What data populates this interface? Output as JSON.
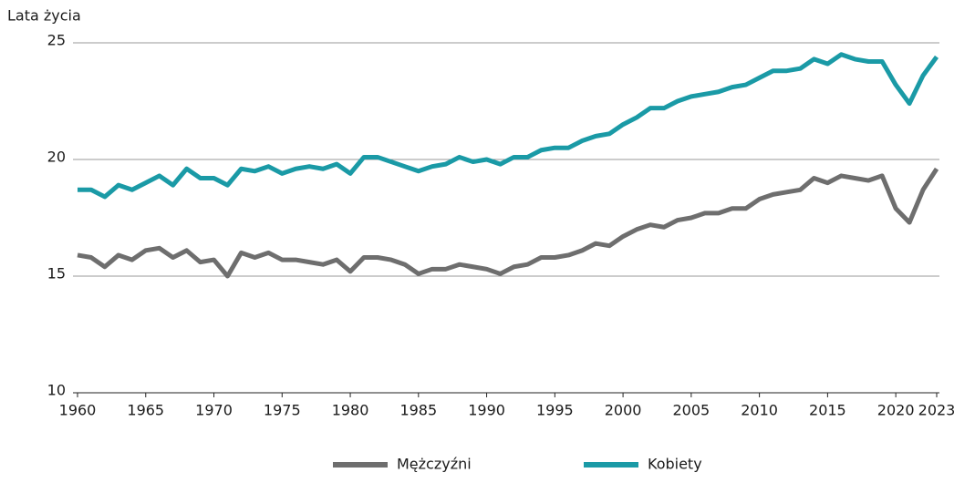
{
  "chart_data": {
    "type": "line",
    "y_label": "Lata życia",
    "x": [
      1960,
      1961,
      1962,
      1963,
      1964,
      1965,
      1966,
      1967,
      1968,
      1969,
      1970,
      1971,
      1972,
      1973,
      1974,
      1975,
      1976,
      1977,
      1978,
      1979,
      1980,
      1981,
      1982,
      1983,
      1984,
      1985,
      1986,
      1987,
      1988,
      1989,
      1990,
      1991,
      1992,
      1993,
      1994,
      1995,
      1996,
      1997,
      1998,
      1999,
      2000,
      2001,
      2002,
      2003,
      2004,
      2005,
      2006,
      2007,
      2008,
      2009,
      2010,
      2011,
      2012,
      2013,
      2014,
      2015,
      2016,
      2017,
      2018,
      2019,
      2020,
      2021,
      2022,
      2023
    ],
    "series": [
      {
        "name": "Mężczyźni",
        "color": "#6e6e6e",
        "values": [
          15.9,
          15.8,
          15.4,
          15.9,
          15.7,
          16.1,
          16.2,
          15.8,
          16.1,
          15.6,
          15.7,
          15.0,
          16.0,
          15.8,
          16.0,
          15.7,
          15.7,
          15.6,
          15.5,
          15.7,
          15.2,
          15.8,
          15.8,
          15.7,
          15.5,
          15.1,
          15.3,
          15.3,
          15.5,
          15.4,
          15.3,
          15.1,
          15.4,
          15.5,
          15.8,
          15.8,
          15.9,
          16.1,
          16.4,
          16.3,
          16.7,
          17.0,
          17.2,
          17.1,
          17.4,
          17.5,
          17.7,
          17.7,
          17.9,
          17.9,
          18.3,
          18.5,
          18.6,
          18.7,
          19.2,
          19.0,
          19.3,
          19.2,
          19.1,
          19.3,
          17.9,
          17.3,
          18.7,
          19.6
        ]
      },
      {
        "name": "Kobiety",
        "color": "#1a9aa6",
        "values": [
          18.7,
          18.7,
          18.4,
          18.9,
          18.7,
          19.0,
          19.3,
          18.9,
          19.6,
          19.2,
          19.2,
          18.9,
          19.6,
          19.5,
          19.7,
          19.4,
          19.6,
          19.7,
          19.6,
          19.8,
          19.4,
          20.1,
          20.1,
          19.9,
          19.7,
          19.5,
          19.7,
          19.8,
          20.1,
          19.9,
          20.0,
          19.8,
          20.1,
          20.1,
          20.4,
          20.5,
          20.5,
          20.8,
          21.0,
          21.1,
          21.5,
          21.8,
          22.2,
          22.2,
          22.5,
          22.7,
          22.8,
          22.9,
          23.1,
          23.2,
          23.5,
          23.8,
          23.8,
          23.9,
          24.3,
          24.1,
          24.5,
          24.3,
          24.2,
          24.2,
          23.2,
          22.4,
          23.6,
          24.4
        ]
      }
    ],
    "xlim": [
      1960,
      2023
    ],
    "xticks": [
      1960,
      1965,
      1970,
      1975,
      1980,
      1985,
      1990,
      1995,
      2000,
      2005,
      2010,
      2015,
      2020,
      2023
    ],
    "ylim": [
      10,
      25
    ],
    "yticks": [
      10,
      15,
      20,
      25
    ],
    "grid": true,
    "legend": "bottom"
  }
}
